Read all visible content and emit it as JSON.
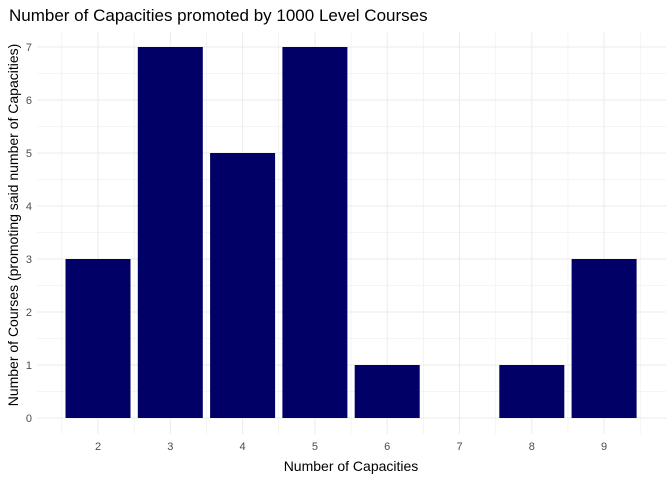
{
  "chart_data": {
    "type": "bar",
    "title": "Number of Capacities promoted by 1000 Level Courses",
    "xlabel": "Number of Capacities",
    "ylabel": "Number of Courses (promoting said number of Capacities)",
    "categories": [
      "2",
      "3",
      "4",
      "5",
      "6",
      "7",
      "8",
      "9"
    ],
    "values": [
      3,
      7,
      5,
      7,
      1,
      0,
      1,
      3
    ],
    "x_ticks": [
      "2",
      "3",
      "4",
      "5",
      "6",
      "7",
      "8",
      "9"
    ],
    "y_ticks": [
      "0",
      "1",
      "2",
      "3",
      "4",
      "5",
      "6",
      "7"
    ],
    "ylim": [
      0,
      7.35
    ],
    "grid": true,
    "legend": "none",
    "bar_color": "#000066",
    "grid_color": "#ebebeb",
    "background": "#ffffff"
  }
}
